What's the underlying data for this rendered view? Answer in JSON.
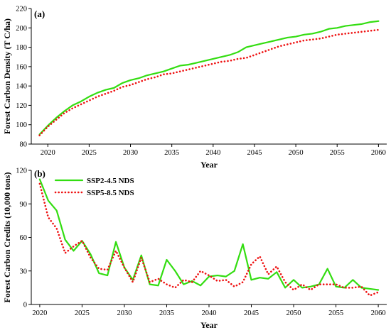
{
  "chart_data": [
    {
      "type": "line",
      "panel_label": "(a)",
      "xlabel": "Year",
      "ylabel": "Forest Carbon Density (T C/ha)",
      "xlim": [
        2018,
        2061
      ],
      "ylim": [
        80,
        220
      ],
      "xticks": [
        2020,
        2025,
        2030,
        2035,
        2040,
        2045,
        2050,
        2055,
        2060
      ],
      "yticks": [
        80,
        100,
        120,
        140,
        160,
        180,
        200,
        220
      ],
      "x": [
        2019,
        2020,
        2021,
        2022,
        2023,
        2024,
        2025,
        2026,
        2027,
        2028,
        2029,
        2030,
        2031,
        2032,
        2033,
        2034,
        2035,
        2036,
        2037,
        2038,
        2039,
        2040,
        2041,
        2042,
        2043,
        2044,
        2045,
        2046,
        2047,
        2048,
        2049,
        2050,
        2051,
        2052,
        2053,
        2054,
        2055,
        2056,
        2057,
        2058,
        2059,
        2060
      ],
      "series": [
        {
          "name": "",
          "color": "#33dd11",
          "style": "solid",
          "values": [
            90,
            99,
            107,
            114,
            120,
            124,
            129,
            133,
            136,
            138,
            143,
            146,
            148,
            151,
            153,
            155,
            158,
            161,
            162,
            164,
            166,
            168,
            170,
            172,
            175,
            180,
            182,
            184,
            186,
            188,
            190,
            191,
            193,
            194,
            196,
            199,
            200,
            202,
            203,
            204,
            206,
            207
          ]
        },
        {
          "name": "",
          "color": "#ee1111",
          "style": "dotted",
          "values": [
            89,
            98,
            105,
            112,
            117,
            121,
            125,
            129,
            132,
            135,
            139,
            141,
            144,
            147,
            149,
            152,
            153,
            155,
            157,
            159,
            161,
            163,
            165,
            166,
            168,
            169,
            172,
            175,
            178,
            181,
            183,
            185,
            187,
            188,
            189,
            191,
            193,
            194,
            195,
            196,
            197,
            198
          ]
        }
      ]
    },
    {
      "type": "line",
      "panel_label": "(b)",
      "xlabel": "Year",
      "ylabel": "Forest Carbon Credits (10,000 tons)",
      "xlim": [
        2019,
        2061
      ],
      "ylim": [
        0,
        120
      ],
      "xticks": [
        2020,
        2025,
        2030,
        2035,
        2040,
        2045,
        2050,
        2055,
        2060
      ],
      "yticks": [
        0,
        30,
        60,
        90,
        120
      ],
      "legend_position": "top-left",
      "x": [
        2020,
        2021,
        2022,
        2023,
        2024,
        2025,
        2026,
        2027,
        2028,
        2029,
        2030,
        2031,
        2032,
        2033,
        2034,
        2035,
        2036,
        2037,
        2038,
        2039,
        2040,
        2041,
        2042,
        2043,
        2044,
        2045,
        2046,
        2047,
        2048,
        2049,
        2050,
        2051,
        2052,
        2053,
        2054,
        2055,
        2056,
        2057,
        2058,
        2059,
        2060
      ],
      "series": [
        {
          "name": "SSP2-4.5 NDS",
          "color": "#33dd11",
          "style": "solid",
          "values": [
            112,
            93,
            84,
            58,
            48,
            57,
            45,
            28,
            26,
            56,
            33,
            22,
            44,
            18,
            17,
            40,
            30,
            18,
            21,
            17,
            25,
            26,
            25,
            30,
            54,
            22,
            24,
            23,
            29,
            15,
            22,
            15,
            16,
            18,
            32,
            16,
            15,
            22,
            15,
            14,
            13
          ]
        },
        {
          "name": "SSP5-8.5 NDS",
          "color": "#ee1111",
          "style": "dotted",
          "values": [
            108,
            78,
            68,
            46,
            52,
            57,
            42,
            32,
            31,
            48,
            33,
            20,
            42,
            20,
            23,
            18,
            15,
            22,
            20,
            30,
            26,
            21,
            22,
            16,
            20,
            36,
            43,
            27,
            34,
            20,
            13,
            18,
            13,
            18,
            18,
            18,
            15,
            15,
            16,
            8,
            11
          ]
        }
      ]
    }
  ]
}
